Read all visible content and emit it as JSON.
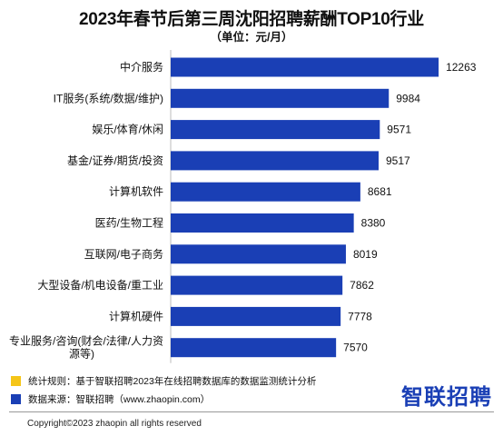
{
  "title": "2023年春节后第三周沈阳招聘薪酬TOP10行业",
  "subtitle": "（单位：元/月）",
  "colors": {
    "bar": "#1a3fb5",
    "note_rule": "#f5c518",
    "note_source": "#1a3fb5",
    "logo": "#1a3fb5"
  },
  "chart_data": {
    "type": "bar",
    "orientation": "horizontal",
    "categories": [
      "中介服务",
      "IT服务(系统/数据/维护)",
      "娱乐/体育/休闲",
      "基金/证券/期货/投资",
      "计算机软件",
      "医药/生物工程",
      "互联网/电子商务",
      "大型设备/机电设备/重工业",
      "计算机硬件",
      "专业服务/咨询(财会/法律/人力资源等)"
    ],
    "category_lines": [
      [
        "中介服务"
      ],
      [
        "IT服务(系统/数据/维护)"
      ],
      [
        "娱乐/体育/休闲"
      ],
      [
        "基金/证券/期货/投资"
      ],
      [
        "计算机软件"
      ],
      [
        "医药/生物工程"
      ],
      [
        "互联网/电子商务"
      ],
      [
        "大型设备/机电设备/重工业"
      ],
      [
        "计算机硬件"
      ],
      [
        "专业服务/咨询(财会/法律/人力资",
        "源等)"
      ]
    ],
    "values": [
      12263,
      9984,
      9571,
      9517,
      8681,
      8380,
      8019,
      7862,
      7778,
      7570
    ],
    "xlim": [
      0,
      12800
    ],
    "grid": false,
    "legend": "none"
  },
  "notes": {
    "rule": "统计规则：基于智联招聘2023年在线招聘数据库的数据监测统计分析",
    "source": "数据来源：智联招聘（www.zhaopin.com）"
  },
  "logo": "智联招聘",
  "copyright": "Copyright©2023 zhaopin all rights reserved"
}
